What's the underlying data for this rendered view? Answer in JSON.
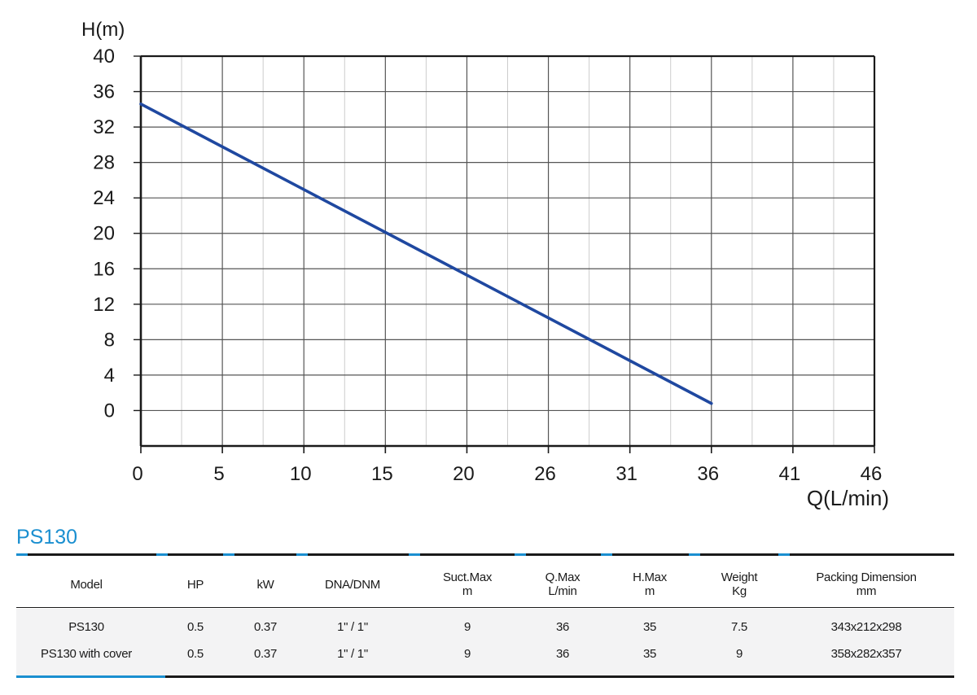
{
  "chart_data": {
    "type": "line",
    "ylabel": "H(m)",
    "xlabel": "Q(L/min)",
    "yticks": [
      "40",
      "36",
      "32",
      "28",
      "24",
      "20",
      "16",
      "12",
      "8",
      "4",
      "0"
    ],
    "xticks": [
      "0",
      "5",
      "10",
      "15",
      "20",
      "26",
      "31",
      "36",
      "41",
      "46"
    ],
    "ylim": [
      -4,
      40
    ],
    "grid": true,
    "series": [
      {
        "color": "#1f48a0",
        "x": [
          0,
          36
        ],
        "y": [
          34.6,
          0.8
        ]
      }
    ]
  },
  "model_title": "PS130",
  "table": {
    "headers": [
      [
        "Model"
      ],
      [
        "HP"
      ],
      [
        "kW"
      ],
      [
        "DNA/DNM"
      ],
      [
        "Suct.Max",
        "m"
      ],
      [
        "Q.Max",
        "L/min"
      ],
      [
        "H.Max",
        "m"
      ],
      [
        "Weight",
        "Kg"
      ],
      [
        "Packing Dimension",
        "mm"
      ]
    ],
    "rows": [
      [
        "PS130",
        "0.5",
        "0.37",
        "1\" / 1\"",
        "9",
        "36",
        "35",
        "7.5",
        "343x212x298"
      ],
      [
        "PS130 with cover",
        "0.5",
        "0.37",
        "1\" / 1\"",
        "9",
        "36",
        "35",
        "9",
        "358x282x357"
      ]
    ]
  },
  "colors": {
    "accent": "#1a8fd0",
    "line": "#1f48a0"
  }
}
